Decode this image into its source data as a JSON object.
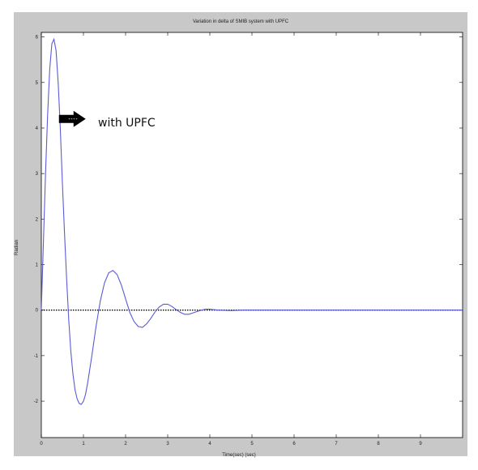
{
  "chart_data": {
    "type": "line",
    "title": "Variation in delta of SMIB system with UPFC",
    "xlabel": "Time(sec) (sec)",
    "ylabel": "Radian",
    "xlim": [
      0,
      10
    ],
    "ylim": [
      -2.8,
      6.1
    ],
    "xticks": [
      0,
      1,
      2,
      3,
      4,
      5,
      6,
      7,
      8,
      9
    ],
    "yticks": [
      -2,
      -1,
      0,
      1,
      2,
      3,
      4,
      5,
      6
    ],
    "xtick_labels": [
      "0",
      "1",
      "2",
      "3",
      "4",
      "5",
      "6",
      "7",
      "8",
      "9"
    ],
    "ytick_labels": [
      "-2",
      "-1",
      "0",
      "1",
      "2",
      "3",
      "4",
      "5",
      "6"
    ],
    "grid": false,
    "series": [
      {
        "color": "#5b5bd6",
        "points": [
          [
            0,
            0.0
          ],
          [
            0.05,
            1.5
          ],
          [
            0.1,
            3.0
          ],
          [
            0.15,
            4.3
          ],
          [
            0.2,
            5.3
          ],
          [
            0.25,
            5.85
          ],
          [
            0.3,
            5.95
          ],
          [
            0.35,
            5.7
          ],
          [
            0.4,
            5.0
          ],
          [
            0.45,
            4.0
          ],
          [
            0.5,
            2.8
          ],
          [
            0.55,
            1.7
          ],
          [
            0.6,
            0.7
          ],
          [
            0.65,
            -0.2
          ],
          [
            0.7,
            -0.9
          ],
          [
            0.75,
            -1.4
          ],
          [
            0.8,
            -1.75
          ],
          [
            0.85,
            -1.95
          ],
          [
            0.9,
            -2.05
          ],
          [
            0.95,
            -2.07
          ],
          [
            1.0,
            -2.0
          ],
          [
            1.05,
            -1.85
          ],
          [
            1.1,
            -1.6
          ],
          [
            1.2,
            -1.0
          ],
          [
            1.3,
            -0.35
          ],
          [
            1.4,
            0.2
          ],
          [
            1.5,
            0.6
          ],
          [
            1.6,
            0.82
          ],
          [
            1.7,
            0.87
          ],
          [
            1.8,
            0.78
          ],
          [
            1.9,
            0.55
          ],
          [
            2.0,
            0.25
          ],
          [
            2.1,
            -0.05
          ],
          [
            2.2,
            -0.25
          ],
          [
            2.3,
            -0.36
          ],
          [
            2.4,
            -0.38
          ],
          [
            2.5,
            -0.3
          ],
          [
            2.6,
            -0.18
          ],
          [
            2.7,
            -0.04
          ],
          [
            2.8,
            0.07
          ],
          [
            2.9,
            0.13
          ],
          [
            3.0,
            0.13
          ],
          [
            3.1,
            0.08
          ],
          [
            3.2,
            0.01
          ],
          [
            3.3,
            -0.05
          ],
          [
            3.4,
            -0.09
          ],
          [
            3.5,
            -0.09
          ],
          [
            3.6,
            -0.06
          ],
          [
            3.7,
            -0.03
          ],
          [
            3.8,
            0.0
          ],
          [
            3.9,
            0.02
          ],
          [
            4.0,
            0.02
          ],
          [
            4.2,
            0.0
          ],
          [
            4.5,
            -0.01
          ],
          [
            4.8,
            0.0
          ],
          [
            5.5,
            0.0
          ],
          [
            7.0,
            0.0
          ],
          [
            8.5,
            0.0
          ],
          [
            10.0,
            0.0
          ]
        ]
      }
    ],
    "reference_line": {
      "y": 0,
      "style": "dotted",
      "color": "#000000"
    },
    "annotation": {
      "text": "with UPFC",
      "arrow_icon": "right-arrow-icon",
      "points_to": [
        0.38,
        4.2
      ]
    }
  }
}
